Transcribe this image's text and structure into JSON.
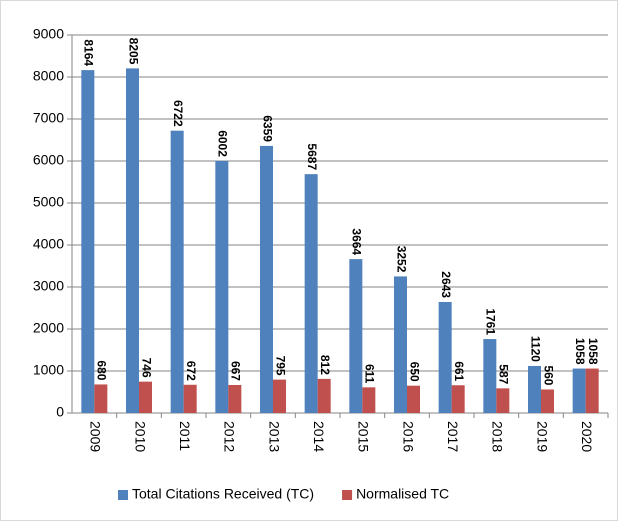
{
  "chart_data": {
    "type": "bar",
    "categories": [
      "2009",
      "2010",
      "2011",
      "2012",
      "2013",
      "2014",
      "2015",
      "2016",
      "2017",
      "2018",
      "2019",
      "2020"
    ],
    "series": [
      {
        "name": "Total Citations Received (TC)",
        "color": "#4f81bd",
        "values": [
          8164,
          8205,
          6722,
          6002,
          6359,
          5687,
          3664,
          3252,
          2643,
          1761,
          1120,
          1058
        ]
      },
      {
        "name": "Normalised TC",
        "color": "#c0504d",
        "values": [
          680,
          746,
          672,
          667,
          795,
          812,
          611,
          650,
          661,
          587,
          560,
          1058
        ]
      }
    ],
    "ylim": [
      0,
      9000
    ],
    "yticks": [
      0,
      1000,
      2000,
      3000,
      4000,
      5000,
      6000,
      7000,
      8000,
      9000
    ],
    "grid": true,
    "legend": "bottom"
  }
}
